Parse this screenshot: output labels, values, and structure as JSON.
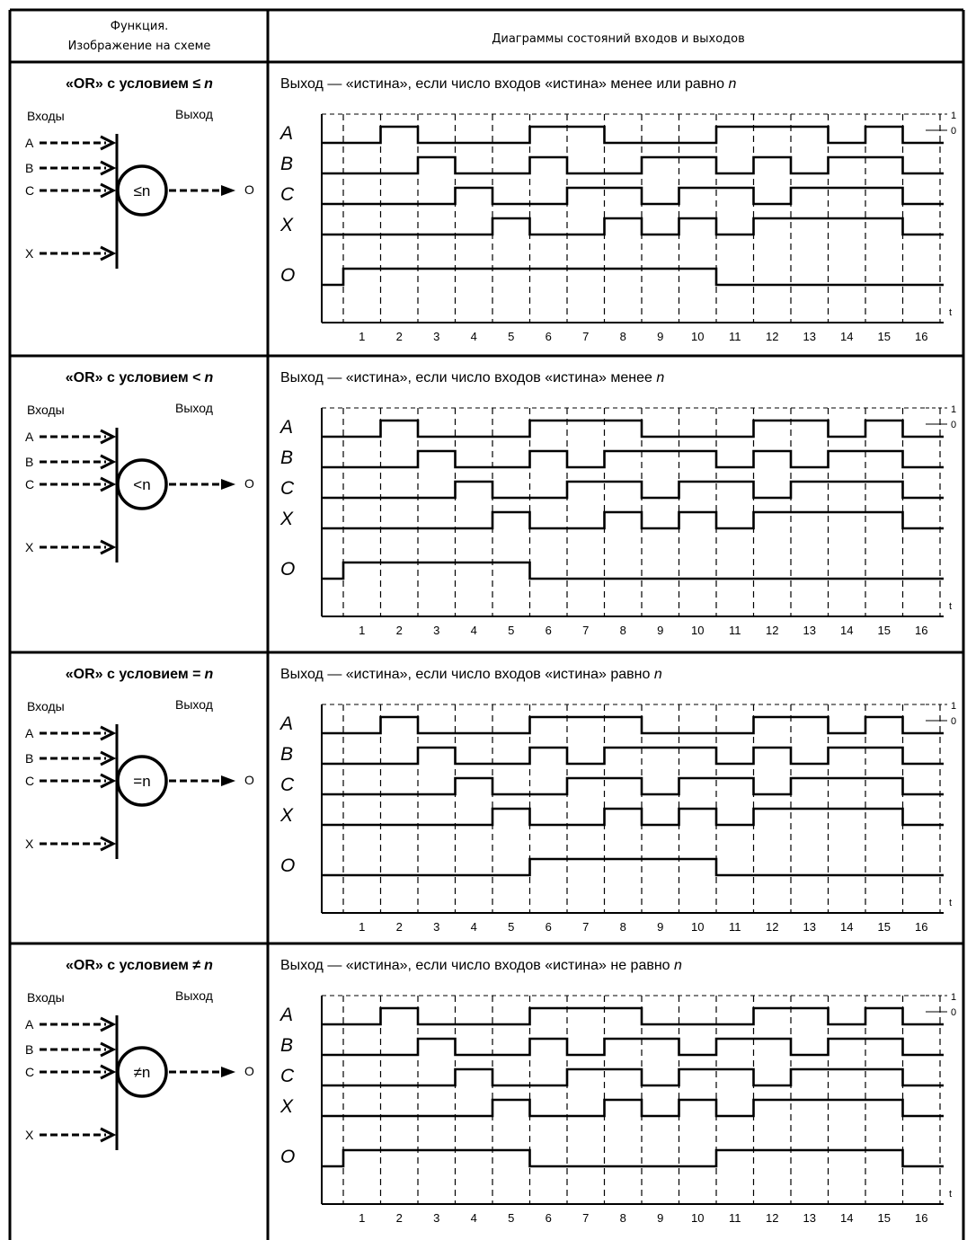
{
  "header": {
    "col1_line1": "Функция.",
    "col1_line2": "Изображение на схеме",
    "col2": "Диаграммы состояний входов и выходов"
  },
  "common": {
    "inputs_label": "Входы",
    "output_label": "Выход",
    "input_names": [
      "A",
      "B",
      "C",
      "X"
    ],
    "output_name": "O",
    "signal_names": [
      "A",
      "B",
      "C",
      "X",
      "O"
    ],
    "level_high": "1",
    "level_low": "0",
    "time_label": "t",
    "ticks": [
      "1",
      "2",
      "3",
      "4",
      "5",
      "6",
      "7",
      "8",
      "9",
      "10",
      "11",
      "12",
      "13",
      "14",
      "15",
      "16"
    ]
  },
  "rows": [
    {
      "title_prefix": "«OR» с условием ",
      "condition": "≤",
      "n": "n",
      "gate_label": "≤n",
      "description_prefix": "Выход — «истина», если число входов «истина» менее или равно ",
      "description_n": "n",
      "chart_data": {
        "type": "timing",
        "x": [
          1,
          2,
          3,
          4,
          5,
          6,
          7,
          8,
          9,
          10,
          11,
          12,
          13,
          14,
          15,
          16
        ],
        "series": [
          {
            "name": "A",
            "values": [
              0,
              1,
              0,
              0,
              0,
              1,
              1,
              0,
              0,
              0,
              1,
              1,
              1,
              0,
              1,
              0
            ]
          },
          {
            "name": "B",
            "values": [
              0,
              0,
              1,
              0,
              0,
              1,
              0,
              0,
              1,
              1,
              0,
              1,
              0,
              1,
              1,
              0
            ]
          },
          {
            "name": "C",
            "values": [
              0,
              0,
              0,
              1,
              0,
              0,
              1,
              1,
              0,
              1,
              1,
              0,
              1,
              1,
              1,
              0
            ]
          },
          {
            "name": "X",
            "values": [
              0,
              0,
              0,
              0,
              1,
              0,
              0,
              1,
              0,
              1,
              0,
              1,
              1,
              1,
              1,
              0
            ]
          },
          {
            "name": "O",
            "values": [
              1,
              1,
              1,
              1,
              1,
              1,
              1,
              1,
              1,
              1,
              0,
              0,
              0,
              0,
              0,
              0
            ]
          }
        ]
      }
    },
    {
      "title_prefix": "«OR» с условием ",
      "condition": "<",
      "n": "n",
      "gate_label": "<n",
      "description_prefix": "Выход — «истина», если число входов «истина» менее ",
      "description_n": "n",
      "chart_data": {
        "type": "timing",
        "x": [
          1,
          2,
          3,
          4,
          5,
          6,
          7,
          8,
          9,
          10,
          11,
          12,
          13,
          14,
          15,
          16
        ],
        "series": [
          {
            "name": "A",
            "values": [
              0,
              1,
              0,
              0,
              0,
              1,
              1,
              1,
              0,
              0,
              0,
              1,
              1,
              0,
              1,
              0
            ]
          },
          {
            "name": "B",
            "values": [
              0,
              0,
              1,
              0,
              0,
              1,
              0,
              1,
              1,
              1,
              0,
              1,
              0,
              1,
              1,
              0
            ]
          },
          {
            "name": "C",
            "values": [
              0,
              0,
              0,
              1,
              0,
              0,
              1,
              1,
              0,
              1,
              1,
              0,
              1,
              1,
              1,
              0
            ]
          },
          {
            "name": "X",
            "values": [
              0,
              0,
              0,
              0,
              1,
              0,
              0,
              1,
              0,
              1,
              0,
              1,
              1,
              1,
              1,
              0
            ]
          },
          {
            "name": "O",
            "values": [
              1,
              1,
              1,
              1,
              1,
              0,
              0,
              0,
              0,
              0,
              0,
              0,
              0,
              0,
              0,
              0
            ]
          }
        ]
      }
    },
    {
      "title_prefix": "«OR» с условием ",
      "condition": "=",
      "n": "n",
      "gate_label": "=n",
      "description_prefix": "Выход — «истина», если число входов «истина» равно ",
      "description_n": "n",
      "chart_data": {
        "type": "timing",
        "x": [
          1,
          2,
          3,
          4,
          5,
          6,
          7,
          8,
          9,
          10,
          11,
          12,
          13,
          14,
          15,
          16
        ],
        "series": [
          {
            "name": "A",
            "values": [
              0,
              1,
              0,
              0,
              0,
              1,
              1,
              1,
              0,
              0,
              0,
              1,
              1,
              0,
              1,
              0
            ]
          },
          {
            "name": "B",
            "values": [
              0,
              0,
              1,
              0,
              0,
              1,
              0,
              1,
              1,
              1,
              0,
              1,
              0,
              1,
              1,
              0
            ]
          },
          {
            "name": "C",
            "values": [
              0,
              0,
              0,
              1,
              0,
              0,
              1,
              1,
              0,
              1,
              1,
              0,
              1,
              1,
              1,
              0
            ]
          },
          {
            "name": "X",
            "values": [
              0,
              0,
              0,
              0,
              1,
              0,
              0,
              1,
              0,
              1,
              0,
              1,
              1,
              1,
              1,
              0
            ]
          },
          {
            "name": "O",
            "values": [
              0,
              0,
              0,
              0,
              0,
              1,
              1,
              1,
              1,
              1,
              0,
              0,
              0,
              0,
              0,
              0
            ]
          }
        ]
      }
    },
    {
      "title_prefix": "«OR» с условием ",
      "condition": "≠",
      "n": "n",
      "gate_label": "≠n",
      "description_prefix": "Выход — «истина», если число входов «истина» не равно ",
      "description_n": "n",
      "chart_data": {
        "type": "timing",
        "x": [
          1,
          2,
          3,
          4,
          5,
          6,
          7,
          8,
          9,
          10,
          11,
          12,
          13,
          14,
          15,
          16
        ],
        "series": [
          {
            "name": "A",
            "values": [
              0,
              1,
              0,
              0,
              0,
              1,
              1,
              1,
              0,
              0,
              0,
              1,
              1,
              0,
              1,
              0
            ]
          },
          {
            "name": "B",
            "values": [
              0,
              0,
              1,
              0,
              0,
              1,
              0,
              1,
              1,
              0,
              1,
              1,
              0,
              1,
              1,
              0
            ]
          },
          {
            "name": "C",
            "values": [
              0,
              0,
              0,
              1,
              0,
              0,
              1,
              1,
              0,
              1,
              1,
              0,
              1,
              1,
              1,
              0
            ]
          },
          {
            "name": "X",
            "values": [
              0,
              0,
              0,
              0,
              1,
              0,
              0,
              1,
              0,
              1,
              0,
              1,
              1,
              1,
              1,
              0
            ]
          },
          {
            "name": "O",
            "values": [
              1,
              1,
              1,
              1,
              1,
              0,
              0,
              0,
              0,
              0,
              1,
              1,
              1,
              1,
              1,
              0
            ]
          }
        ]
      }
    }
  ]
}
